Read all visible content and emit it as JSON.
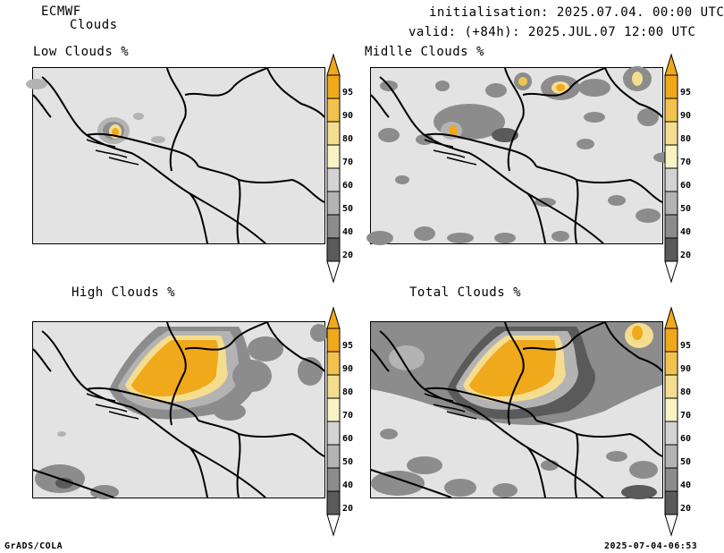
{
  "header": {
    "model": "ECMWF",
    "product": "Clouds",
    "initialisation": "initialisation: 2025.07.04. 00:00 UTC",
    "valid": "valid: (+84h): 2025.JUL.07 12:00 UTC"
  },
  "panels": [
    {
      "title": "Low Clouds %"
    },
    {
      "title": "Midlle Clouds %"
    },
    {
      "title": "High Clouds %"
    },
    {
      "title": "Total Clouds %"
    }
  ],
  "colorbar": {
    "levels": [
      "95",
      "90",
      "80",
      "70",
      "60",
      "50",
      "40",
      "20"
    ],
    "colors": {
      "c95": "#f0a91a",
      "c90": "#f2c24e",
      "c80": "#f5dd90",
      "c70": "#f8f2c4",
      "c60": "#d3d3d3",
      "c50": "#b3b3b3",
      "c40": "#8c8c8c",
      "c20": "#5a5a5a",
      "background": "#e3e3e3"
    }
  },
  "footer": {
    "left": "GrADS/COLA",
    "right": "2025-07-04-06:53"
  }
}
